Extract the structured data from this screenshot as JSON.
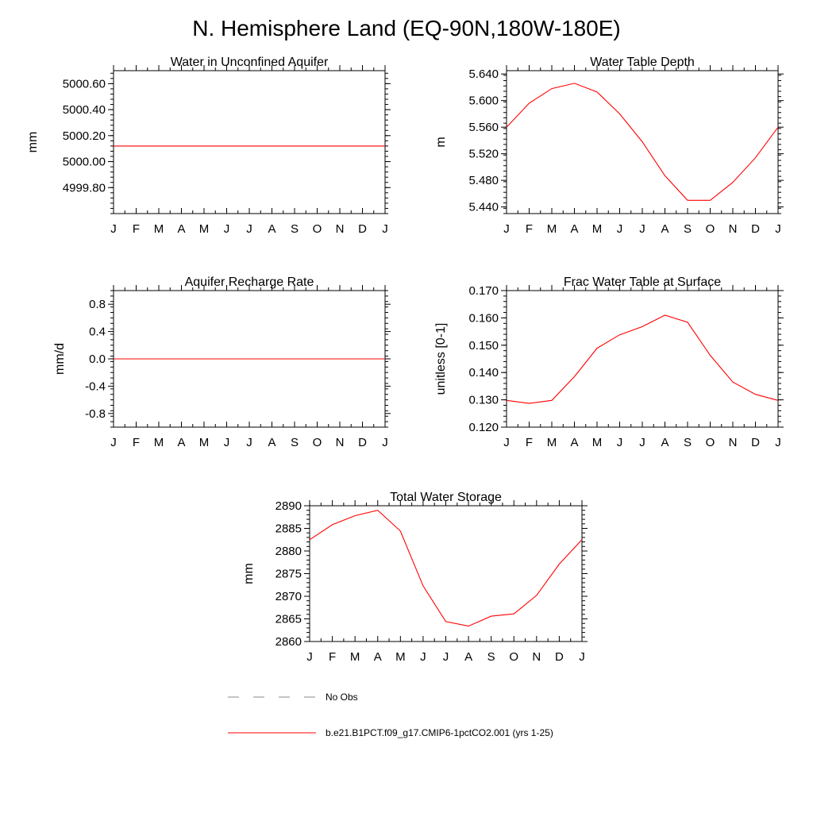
{
  "page": {
    "title": "N. Hemisphere Land (EQ-90N,180W-180E)"
  },
  "chart_data": [
    {
      "id": "aquifer",
      "type": "line",
      "title": "Water in Unconfined Aquifer",
      "ylabel": "mm",
      "categories": [
        "J",
        "F",
        "M",
        "A",
        "M",
        "J",
        "J",
        "A",
        "S",
        "O",
        "N",
        "D",
        "J"
      ],
      "ylim": [
        4999.6,
        5000.7
      ],
      "yticks": [
        5000.6,
        5000.4,
        5000.2,
        5000.0,
        4999.8
      ],
      "ytick_labels": [
        "5000.60",
        "5000.40",
        "5000.20",
        "5000.00",
        "4999.80"
      ],
      "series": [
        {
          "values": [
            5000.12,
            5000.12,
            5000.12,
            5000.12,
            5000.12,
            5000.12,
            5000.12,
            5000.12,
            5000.12,
            5000.12,
            5000.12,
            5000.12,
            5000.12
          ]
        }
      ]
    },
    {
      "id": "wtd",
      "type": "line",
      "title": "Water Table Depth",
      "ylabel": "m",
      "categories": [
        "J",
        "F",
        "M",
        "A",
        "M",
        "J",
        "J",
        "A",
        "S",
        "O",
        "N",
        "D",
        "J"
      ],
      "ylim": [
        5.43,
        5.645
      ],
      "yticks": [
        5.64,
        5.6,
        5.56,
        5.52,
        5.48,
        5.44
      ],
      "ytick_labels": [
        "5.640",
        "5.600",
        "5.560",
        "5.520",
        "5.480",
        "5.440"
      ],
      "series": [
        {
          "values": [
            5.56,
            5.596,
            5.618,
            5.626,
            5.613,
            5.58,
            5.538,
            5.487,
            5.45,
            5.45,
            5.477,
            5.514,
            5.56
          ]
        }
      ]
    },
    {
      "id": "recharge",
      "type": "line",
      "title": "Aquifer Recharge Rate",
      "ylabel": "mm/d",
      "categories": [
        "J",
        "F",
        "M",
        "A",
        "M",
        "J",
        "J",
        "A",
        "S",
        "O",
        "N",
        "D",
        "J"
      ],
      "ylim": [
        -1.0,
        1.0
      ],
      "yticks": [
        0.8,
        0.4,
        0.0,
        -0.4,
        -0.8
      ],
      "ytick_labels": [
        "0.8",
        "0.4",
        "0.0",
        "-0.4",
        "-0.8"
      ],
      "series": [
        {
          "values": [
            0,
            0,
            0,
            0,
            0,
            0,
            0,
            0,
            0,
            0,
            0,
            0,
            0
          ]
        }
      ]
    },
    {
      "id": "frac",
      "type": "line",
      "title": "Frac Water Table at Surface",
      "ylabel": "unitless [0-1]",
      "categories": [
        "J",
        "F",
        "M",
        "A",
        "M",
        "J",
        "J",
        "A",
        "S",
        "O",
        "N",
        "D",
        "J"
      ],
      "ylim": [
        0.12,
        0.17
      ],
      "yticks": [
        0.17,
        0.16,
        0.15,
        0.14,
        0.13,
        0.12
      ],
      "ytick_labels": [
        "0.170",
        "0.160",
        "0.150",
        "0.140",
        "0.130",
        "0.120"
      ],
      "series": [
        {
          "values": [
            0.1298,
            0.1287,
            0.1298,
            0.1385,
            0.1489,
            0.1538,
            0.1568,
            0.161,
            0.1584,
            0.1463,
            0.1365,
            0.132,
            0.1298
          ]
        }
      ]
    },
    {
      "id": "tws",
      "type": "line",
      "title": "Total Water Storage",
      "ylabel": "mm",
      "categories": [
        "J",
        "F",
        "M",
        "A",
        "M",
        "J",
        "J",
        "A",
        "S",
        "O",
        "N",
        "D",
        "J"
      ],
      "ylim": [
        2860,
        2890
      ],
      "yticks": [
        2890,
        2885,
        2880,
        2875,
        2870,
        2865,
        2860
      ],
      "ytick_labels": [
        "2890",
        "2885",
        "2880",
        "2875",
        "2870",
        "2865",
        "2860"
      ],
      "series": [
        {
          "values": [
            2882.5,
            2885.8,
            2887.8,
            2889.0,
            2884.4,
            2872.3,
            2864.4,
            2863.4,
            2865.6,
            2866.1,
            2870.2,
            2877.1,
            2882.5
          ]
        }
      ]
    }
  ],
  "legend": {
    "items": [
      {
        "label": "No Obs",
        "color": "#888888",
        "style": "dashed"
      },
      {
        "label": "b.e21.B1PCT.f09_g17.CMIP6-1pctCO2.001 (yrs 1-25)",
        "color": "#ff0000",
        "style": "solid"
      }
    ]
  }
}
